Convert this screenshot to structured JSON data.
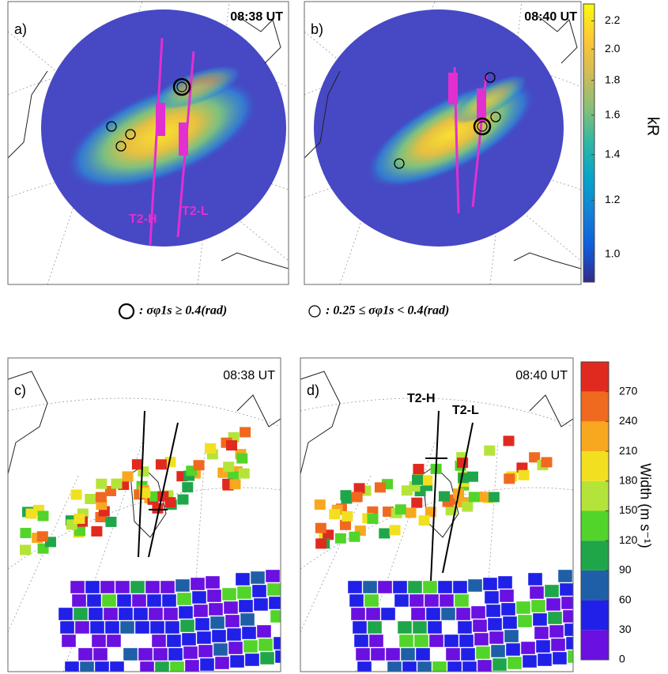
{
  "panels": [
    {
      "label": "a)",
      "time": "08:38 UT",
      "annotations": [
        "T2-H",
        "T2-L"
      ]
    },
    {
      "label": "b)",
      "time": "08:40 UT"
    },
    {
      "label": "c)",
      "time": "08:38 UT"
    },
    {
      "label": "d)",
      "time": "08:40 UT",
      "annotations": [
        "T2-H",
        "T2-L"
      ]
    }
  ],
  "legend": [
    ": σφ1s ≥ 0.4(rad)",
    ": 0.25 ≤ σφ1s < 0.4(rad)"
  ],
  "colorbars": [
    {
      "title": "kR",
      "scale": "log",
      "lim": [
        0.91,
        2.33
      ],
      "ticks": [
        {
          "value": 1,
          "label": "1.0"
        },
        1.2,
        1.4,
        1.6,
        1.8,
        {
          "value": 2,
          "label": "2.0"
        },
        2.2
      ],
      "colors": [
        "#352a87",
        "#0f5cdd",
        "#1481d6",
        "#06a4ca",
        "#2eb7a4",
        "#87bf77",
        "#d1bb59",
        "#fec832",
        "#f9fb0e"
      ]
    },
    {
      "title": "Width (m s⁻¹)",
      "scale": "linear",
      "lim": [
        0,
        300
      ],
      "ticks": [
        0,
        30,
        60,
        90,
        120,
        150,
        180,
        210,
        240,
        270
      ],
      "colors": [
        "#6a10e0",
        "#2020e8",
        "#1f5fa8",
        "#1fa64a",
        "#52d42a",
        "#b4e43a",
        "#f2e020",
        "#f8a81f",
        "#ef6a1f",
        "#e02a1f"
      ]
    }
  ]
}
